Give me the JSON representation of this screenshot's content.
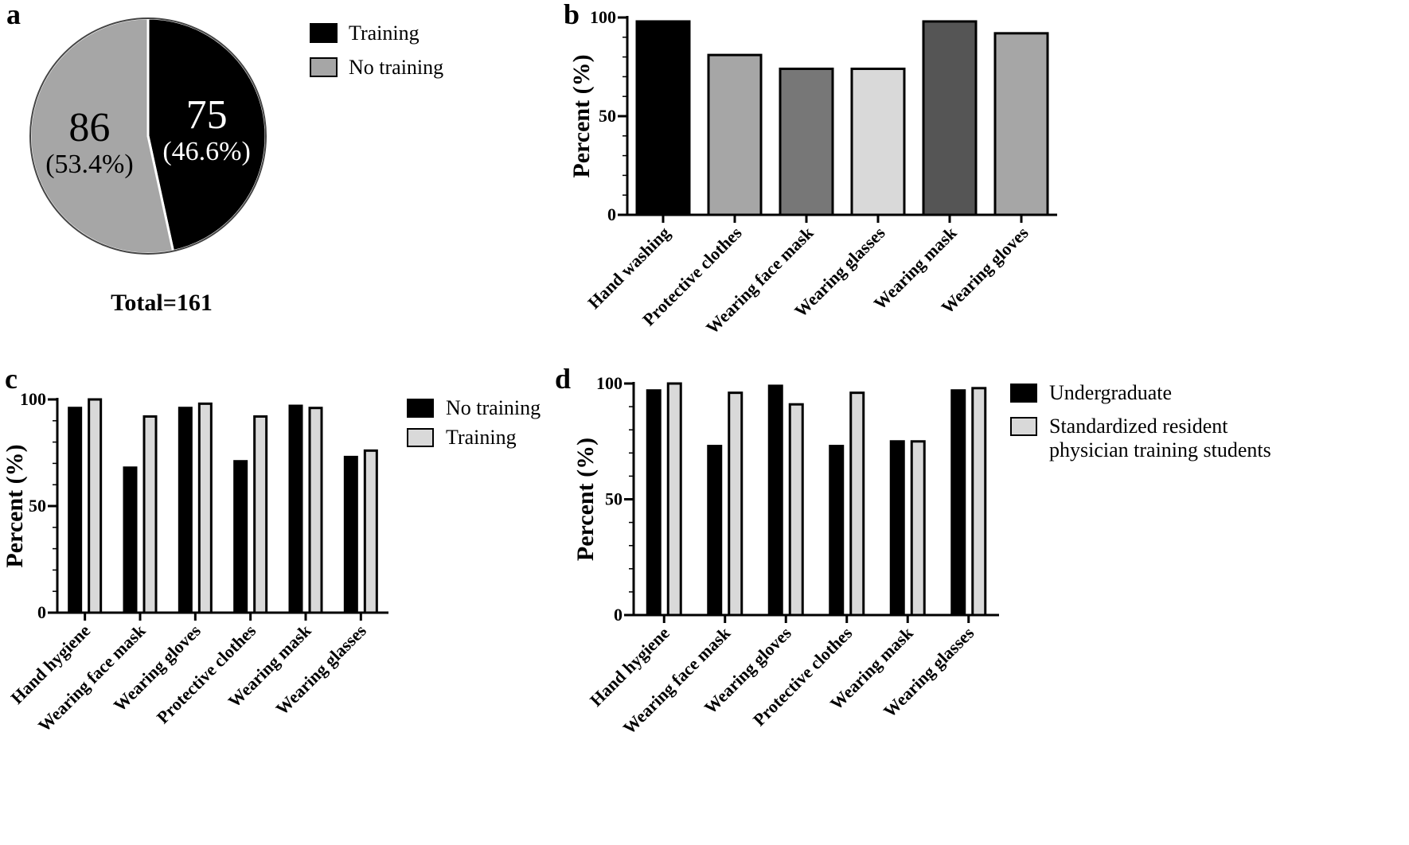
{
  "chart_data": [
    {
      "panel": "a",
      "type": "pie",
      "slices": [
        {
          "label": "Training",
          "value": 75,
          "display_value": "75",
          "percent_label": "(46.6%)",
          "color": "#000000",
          "text_color": "#ffffff"
        },
        {
          "label": "No training",
          "value": 86,
          "display_value": "86",
          "percent_label": "(53.4%)",
          "color": "#a6a6a6",
          "text_color": "#000000"
        }
      ],
      "total_label": "Total=161"
    },
    {
      "panel": "b",
      "type": "bar",
      "ylabel": "Percent (%)",
      "ylim": [
        0,
        100
      ],
      "yticks": [
        0,
        50,
        100
      ],
      "categories": [
        "Hand washing",
        "Protective clothes",
        "Wearing face mask",
        "Wearing glasses",
        "Wearing mask",
        "Wearing gloves"
      ],
      "values": [
        98,
        81,
        74,
        74,
        98,
        92
      ],
      "colors": [
        "#000000",
        "#a6a6a6",
        "#777777",
        "#d9d9d9",
        "#555555",
        "#a6a6a6"
      ]
    },
    {
      "panel": "c",
      "type": "bar",
      "ylabel": "Percent (%)",
      "ylim": [
        0,
        100
      ],
      "yticks": [
        0,
        50,
        100
      ],
      "categories": [
        "Hand hygiene",
        "Wearing face mask",
        "Wearing gloves",
        "Protective clothes",
        "Wearing mask",
        "Wearing glasses"
      ],
      "series": [
        {
          "name": "No training",
          "values": [
            96,
            68,
            96,
            71,
            97,
            73
          ],
          "color": "#000000"
        },
        {
          "name": "Training",
          "values": [
            100,
            92,
            98,
            92,
            96,
            76
          ],
          "color": "#d9d9d9"
        }
      ]
    },
    {
      "panel": "d",
      "type": "bar",
      "ylabel": "Percent (%)",
      "ylim": [
        0,
        100
      ],
      "yticks": [
        0,
        50,
        100
      ],
      "categories": [
        "Hand hygiene",
        "Wearing face mask",
        "Wearing gloves",
        "Protective clothes",
        "Wearing mask",
        "Wearing glasses"
      ],
      "series": [
        {
          "name": "Undergraduate",
          "values": [
            97,
            73,
            99,
            73,
            75,
            97
          ],
          "color": "#000000"
        },
        {
          "name": "Standardized resident physician training students",
          "legend_lines": [
            "Standardized resident",
            "physician training students"
          ],
          "values": [
            100,
            96,
            91,
            96,
            75,
            98
          ],
          "color": "#d9d9d9"
        }
      ]
    }
  ]
}
